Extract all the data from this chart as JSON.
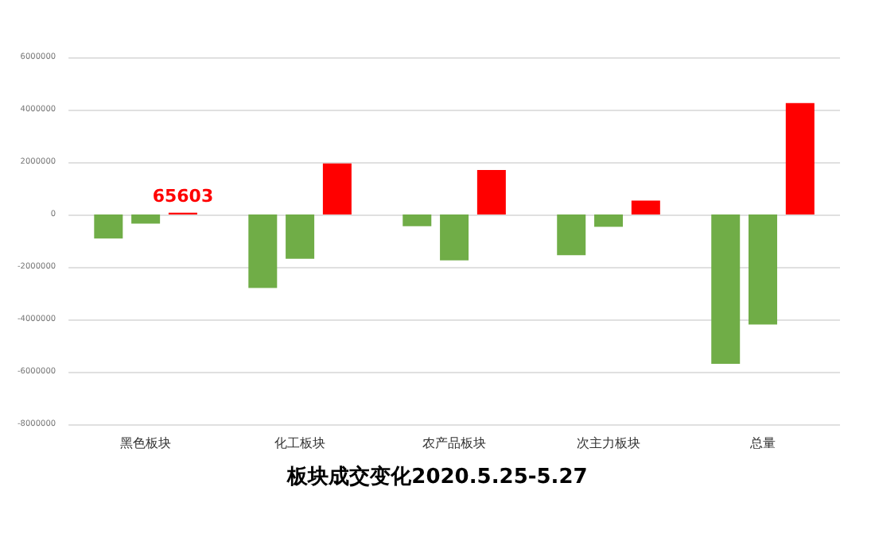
{
  "chart_data": {
    "type": "bar",
    "title": "板块成交变化2020.5.25-5.27",
    "categories": [
      "黑色板块",
      "化工板块",
      "农产品板块",
      "次主力板块",
      "总量"
    ],
    "series": [
      {
        "color": "#70ad47",
        "values": [
          -920000,
          -2800000,
          -450000,
          -1550000,
          -5700000
        ]
      },
      {
        "color": "#70ad47",
        "values": [
          -350000,
          -1690000,
          -1750000,
          -470000,
          -4200000
        ]
      },
      {
        "color": "#ff0000",
        "values": [
          65603,
          1950000,
          1700000,
          530000,
          4250000
        ],
        "value_labels": [
          "65603",
          null,
          null,
          null,
          null
        ]
      }
    ],
    "ylim": [
      -8000000,
      6000000
    ],
    "yticks": [
      -8000000,
      -6000000,
      -4000000,
      -2000000,
      0,
      2000000,
      4000000,
      6000000
    ],
    "grid": "y"
  }
}
